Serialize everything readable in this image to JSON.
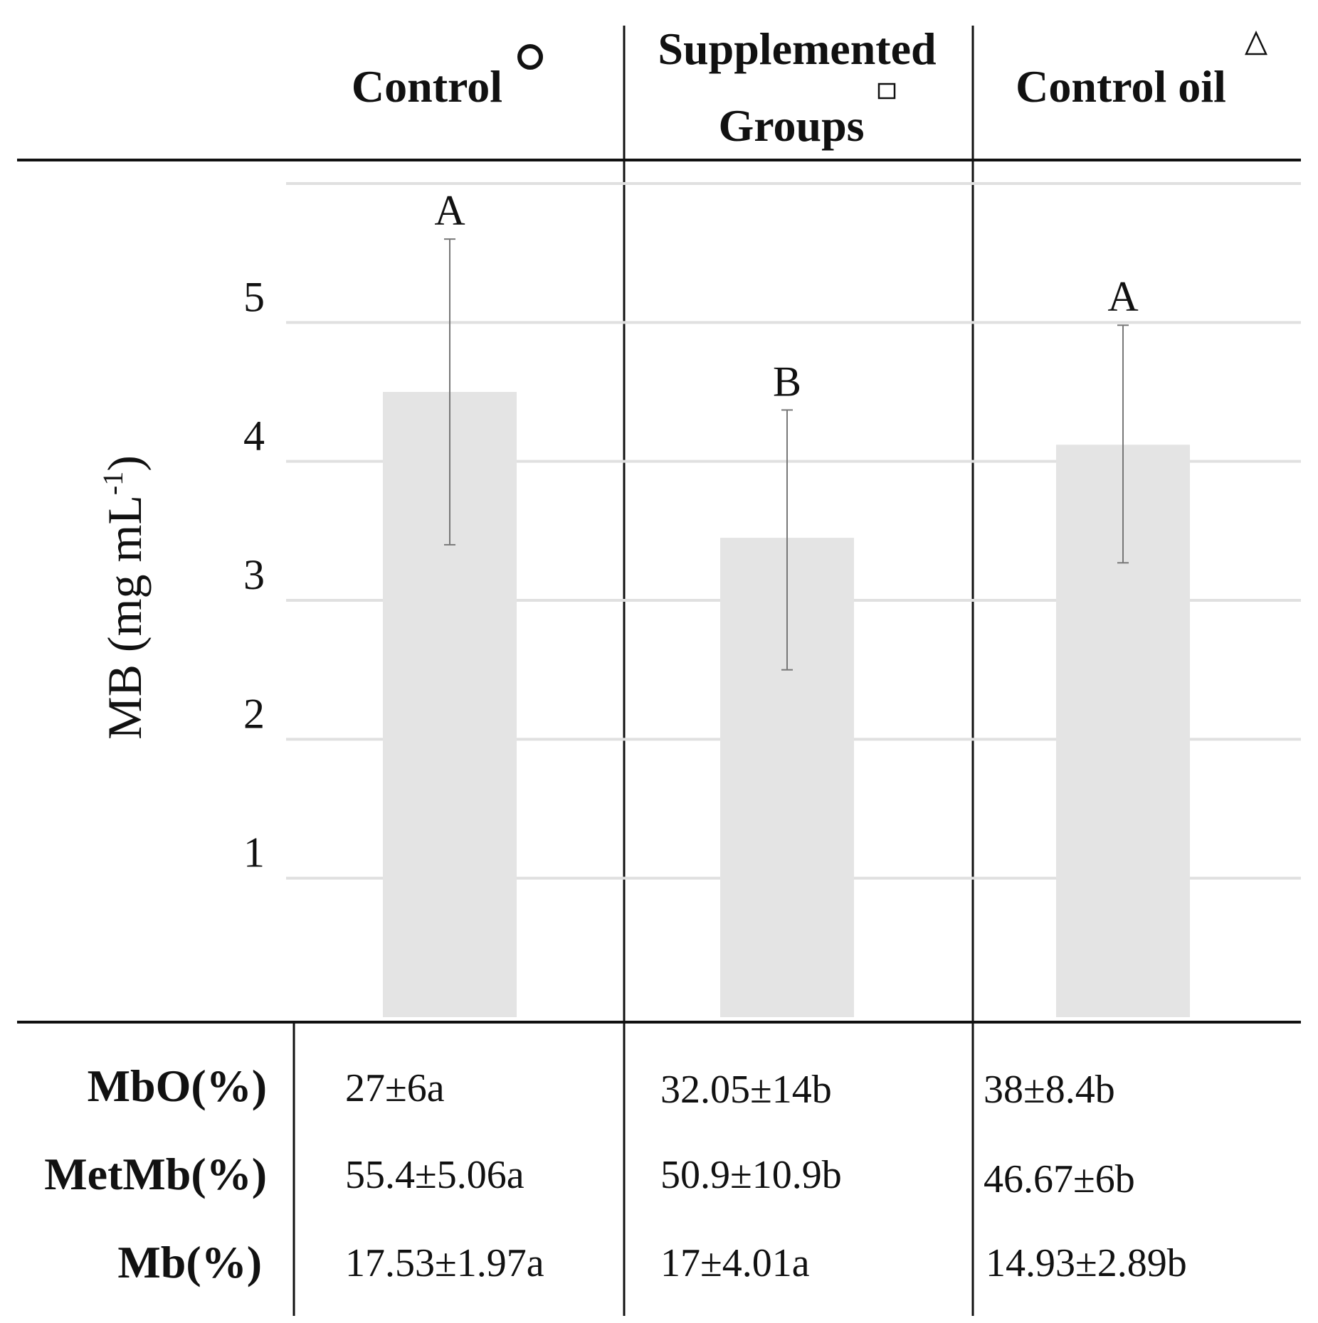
{
  "chart_data": {
    "type": "bar",
    "title": "",
    "xlabel": "",
    "ylabel": "MB (mg mL",
    "ylabel_superscript": "-1",
    "ylabel_close": ")",
    "ylim": [
      0,
      6
    ],
    "gridlines": [
      1,
      2,
      3,
      4,
      5,
      6
    ],
    "yticks": [
      1,
      2,
      3,
      4,
      5
    ],
    "categories": [
      "Control",
      "Supplemented Groups",
      "Control oil"
    ],
    "header_lines": [
      [
        "Control"
      ],
      [
        "Supplemented",
        "Groups"
      ],
      [
        "Control oil"
      ]
    ],
    "category_symbols": [
      "circle",
      "square",
      "triangle"
    ],
    "values": [
      4.5,
      3.45,
      4.12
    ],
    "error_low": [
      3.4,
      2.5,
      3.27
    ],
    "error_high": [
      5.6,
      4.37,
      4.98
    ],
    "significance_letters": [
      "A",
      "B",
      "A"
    ]
  },
  "colors": {
    "bar": "#e4e4e4",
    "grid": "#e0e0e0",
    "error": "#777777",
    "rules": "#111111"
  },
  "table": {
    "rows": [
      {
        "label": "MbO(%)",
        "values": [
          "27±6a",
          "32.05±14b",
          "38±8.4b"
        ]
      },
      {
        "label": "MetMb(%)",
        "values": [
          "55.4±5.06a",
          "50.9±10.9b",
          "46.67±6b"
        ]
      },
      {
        "label": "Mb(%)",
        "values": [
          "17.53±1.97a",
          "17±4.01a",
          "14.93±2.89b"
        ]
      }
    ]
  }
}
